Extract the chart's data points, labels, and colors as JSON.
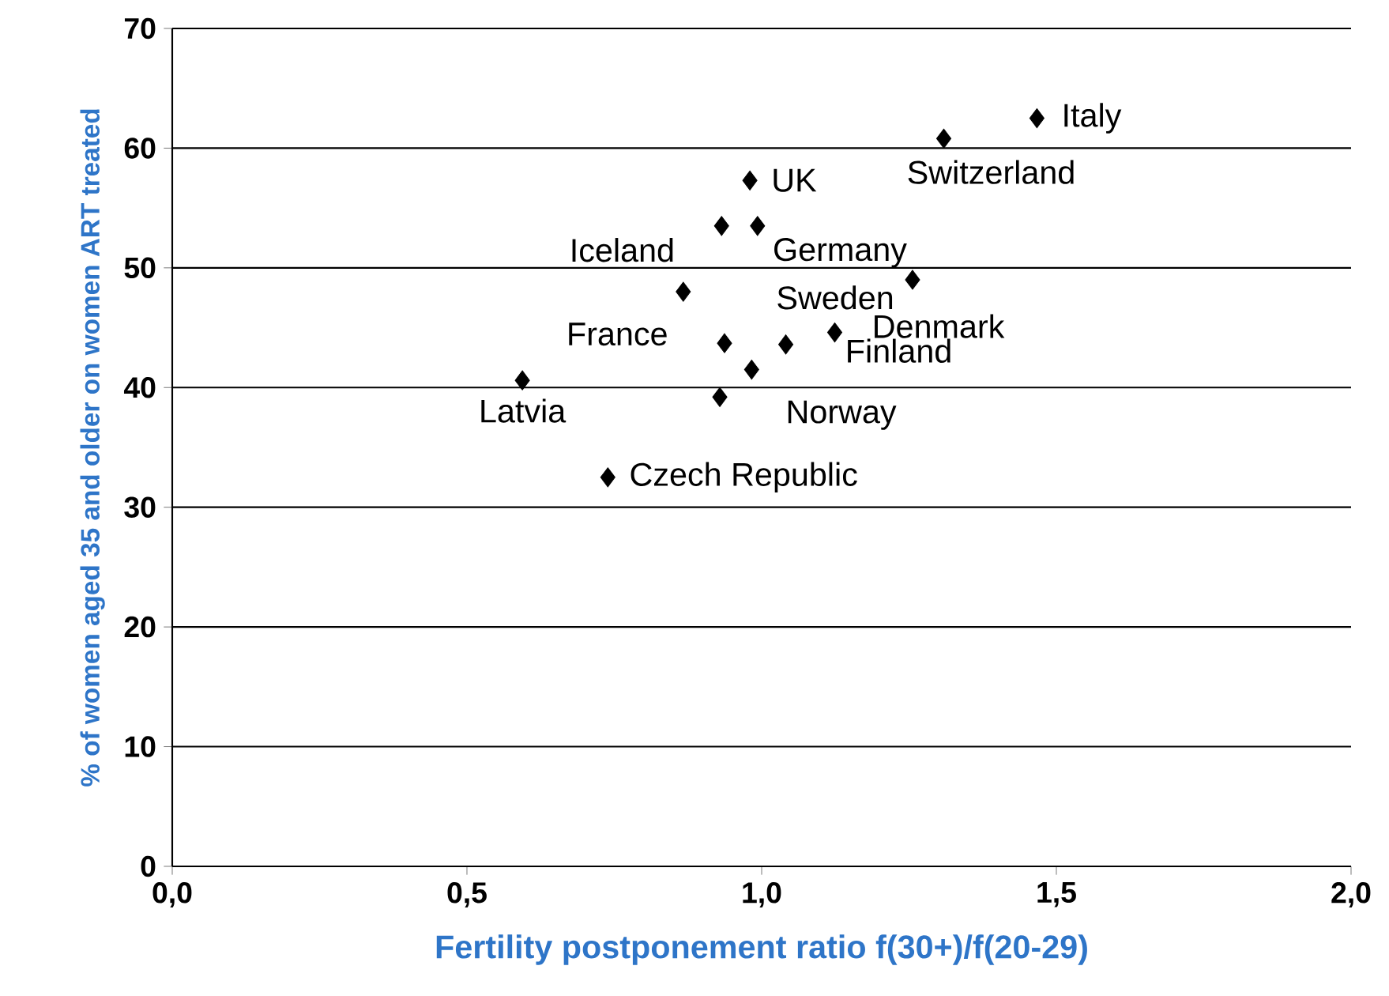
{
  "chart_data": {
    "type": "scatter",
    "xlabel": "Fertility postponement ratio f(30+)/f(20-29)",
    "ylabel": "% of women aged 35 and older on women ART treated",
    "x": [
      1.467,
      1.309,
      0.98,
      0.932,
      0.993,
      1.256,
      0.867,
      0.937,
      1.041,
      1.124,
      0.983,
      0.929,
      0.594,
      0.739
    ],
    "values": [
      62.5,
      60.8,
      57.3,
      53.5,
      53.5,
      49.0,
      48.0,
      43.7,
      43.6,
      44.6,
      41.5,
      39.2,
      40.6,
      32.5
    ],
    "color": "#000000",
    "marker": "diamond",
    "grid": "y",
    "xlim": [
      0,
      2
    ],
    "ylim": [
      0,
      70
    ],
    "xticks": [
      {
        "value": 0,
        "label": "0,0"
      },
      {
        "value": 0.5,
        "label": "0,5"
      },
      {
        "value": 1,
        "label": "1,0"
      },
      {
        "value": 1.5,
        "label": "1,5"
      },
      {
        "value": 2,
        "label": "2,0"
      }
    ],
    "yticks": [
      0,
      10,
      20,
      30,
      40,
      50,
      60,
      70
    ],
    "annotations": [
      {
        "text": "Italy",
        "x": 1.467,
        "y": 62.5
      },
      {
        "text": "Switzerland",
        "x": 1.309,
        "y": 60.8
      },
      {
        "text": "UK",
        "x": 0.98,
        "y": 57.3
      },
      {
        "text": "Iceland",
        "x": 0.932,
        "y": 53.5
      },
      {
        "text": "Germany",
        "x": 0.993,
        "y": 53.5
      },
      {
        "text": "Sweden",
        "x": 1.256,
        "y": 49.0
      },
      {
        "text": "France",
        "x": 0.867,
        "y": 48.0
      },
      {
        "text": "Denmark",
        "x": 1.124,
        "y": 44.6
      },
      {
        "text": "Finland",
        "x": 1.041,
        "y": 43.6
      },
      {
        "text": "Norway",
        "x": 0.983,
        "y": 41.5
      },
      {
        "text": "Latvia",
        "x": 0.594,
        "y": 40.6
      },
      {
        "text": "Czech Republic",
        "x": 0.739,
        "y": 32.5
      }
    ]
  }
}
